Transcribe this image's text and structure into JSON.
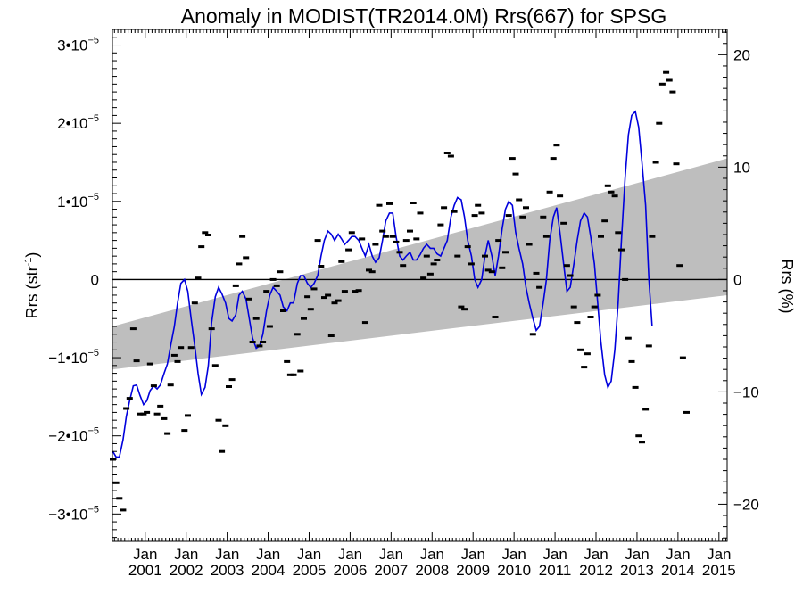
{
  "chart_data": {
    "type": "line",
    "title": "Anomaly in MODIST(TR2014.0M) Rrs(667) for SPSG",
    "ylabel_left": {
      "base": "Rrs (str",
      "sup": "-1",
      "end": ")"
    },
    "ylabel_right": "Rrs (%)",
    "x_range": [
      2000.2,
      2015.2
    ],
    "ylim_left": [
      -3.35e-05,
      3.2e-05
    ],
    "ylim_right": [
      -23.3,
      22.25
    ],
    "grid": false,
    "x_ticks": [
      {
        "x": 2001.0,
        "top": "Jan",
        "bottom": "2001"
      },
      {
        "x": 2002.0,
        "top": "Jan",
        "bottom": "2002"
      },
      {
        "x": 2003.0,
        "top": "Jan",
        "bottom": "2003"
      },
      {
        "x": 2004.0,
        "top": "Jan",
        "bottom": "2004"
      },
      {
        "x": 2005.0,
        "top": "Jan",
        "bottom": "2005"
      },
      {
        "x": 2006.0,
        "top": "Jan",
        "bottom": "2006"
      },
      {
        "x": 2007.0,
        "top": "Jan",
        "bottom": "2007"
      },
      {
        "x": 2008.0,
        "top": "Jan",
        "bottom": "2008"
      },
      {
        "x": 2009.0,
        "top": "Jan",
        "bottom": "2009"
      },
      {
        "x": 2010.0,
        "top": "Jan",
        "bottom": "2010"
      },
      {
        "x": 2011.0,
        "top": "Jan",
        "bottom": "2011"
      },
      {
        "x": 2012.0,
        "top": "Jan",
        "bottom": "2012"
      },
      {
        "x": 2013.0,
        "top": "Jan",
        "bottom": "2013"
      },
      {
        "x": 2014.0,
        "top": "Jan",
        "bottom": "2014"
      },
      {
        "x": 2015.0,
        "top": "Jan",
        "bottom": "2015"
      }
    ],
    "y_ticks_left": [
      {
        "v": 3e-05,
        "m": "3•10",
        "e": "−5"
      },
      {
        "v": 2e-05,
        "m": "2•10",
        "e": "−5"
      },
      {
        "v": 1e-05,
        "m": "1•10",
        "e": "−5"
      },
      {
        "v": 0,
        "m": "0",
        "e": ""
      },
      {
        "v": -1e-05,
        "m": "−1•10",
        "e": "−5"
      },
      {
        "v": -2e-05,
        "m": "−2•10",
        "e": "−5"
      },
      {
        "v": -3e-05,
        "m": "−3•10",
        "e": "−5"
      }
    ],
    "y_ticks_right": [
      {
        "v": 20,
        "label": "20"
      },
      {
        "v": 10,
        "label": "10"
      },
      {
        "v": 0,
        "label": "0"
      },
      {
        "v": -10,
        "label": "−10"
      },
      {
        "v": -20,
        "label": "−20"
      }
    ],
    "colors": {
      "smooth_line": "#0000dd",
      "trend_band": "#bebebe",
      "points": "#000000",
      "zero_line": "#000000"
    },
    "trend_band": {
      "x": [
        2000.2,
        2015.2
      ],
      "lower": [
        -1.15e-05,
        -2e-06
      ],
      "upper": [
        -6e-06,
        1.55e-05
      ]
    },
    "monthly_points": [
      [
        2000.21,
        -2.3e-05
      ],
      [
        2000.29,
        -2.6e-05
      ],
      [
        2000.37,
        -2.8e-05
      ],
      [
        2000.46,
        -2.95e-05
      ],
      [
        2000.54,
        -1.65e-05
      ],
      [
        2000.62,
        -1.52e-05
      ],
      [
        2000.71,
        -6.3e-06
      ],
      [
        2000.79,
        -1.04e-05
      ],
      [
        2000.87,
        -1.72e-05
      ],
      [
        2000.96,
        -1.72e-05
      ],
      [
        2001.04,
        -1.7e-05
      ],
      [
        2001.12,
        -1.08e-05
      ],
      [
        2001.21,
        -1.36e-05
      ],
      [
        2001.29,
        -1.72e-05
      ],
      [
        2001.37,
        -1.62e-05
      ],
      [
        2001.46,
        -1.78e-05
      ],
      [
        2001.54,
        -1.97e-05
      ],
      [
        2001.62,
        -1.35e-05
      ],
      [
        2001.71,
        -9.7e-06
      ],
      [
        2001.79,
        -1.05e-05
      ],
      [
        2001.87,
        -8.7e-06
      ],
      [
        2001.96,
        -1.93e-05
      ],
      [
        2002.04,
        -1.74e-05
      ],
      [
        2002.12,
        -8.7e-06
      ],
      [
        2002.21,
        -3e-06
      ],
      [
        2002.29,
        2e-07
      ],
      [
        2002.37,
        4.2e-06
      ],
      [
        2002.46,
        6e-06
      ],
      [
        2002.54,
        5.7e-06
      ],
      [
        2002.62,
        -6.3e-06
      ],
      [
        2002.71,
        -1.1e-05
      ],
      [
        2002.79,
        -1.8e-05
      ],
      [
        2002.87,
        -2.2e-05
      ],
      [
        2002.96,
        -1.87e-05
      ],
      [
        2003.04,
        -1.37e-05
      ],
      [
        2003.12,
        -1.28e-05
      ],
      [
        2003.21,
        -8e-07
      ],
      [
        2003.29,
        2e-06
      ],
      [
        2003.37,
        5.5e-06
      ],
      [
        2003.46,
        2.8e-06
      ],
      [
        2003.54,
        -2.5e-06
      ],
      [
        2003.62,
        -8e-06
      ],
      [
        2003.71,
        -5e-06
      ],
      [
        2003.79,
        -8.5e-06
      ],
      [
        2003.87,
        -8e-06
      ],
      [
        2003.96,
        -1.5e-06
      ],
      [
        2004.04,
        -6e-06
      ],
      [
        2004.12,
        0.0
      ],
      [
        2004.21,
        -8e-07
      ],
      [
        2004.29,
        1e-06
      ],
      [
        2004.37,
        -4e-06
      ],
      [
        2004.46,
        -1.05e-05
      ],
      [
        2004.54,
        -1.22e-05
      ],
      [
        2004.62,
        -1.22e-05
      ],
      [
        2004.71,
        -7e-06
      ],
      [
        2004.79,
        -1.17e-05
      ],
      [
        2004.87,
        -5e-06
      ],
      [
        2004.96,
        -2.2e-06
      ],
      [
        2005.04,
        -3.8e-06
      ],
      [
        2005.12,
        -1.2e-06
      ],
      [
        2005.21,
        5e-06
      ],
      [
        2005.29,
        1.7e-06
      ],
      [
        2005.37,
        -2.3e-06
      ],
      [
        2005.46,
        -2e-06
      ],
      [
        2005.54,
        -7.2e-06
      ],
      [
        2005.62,
        -3e-06
      ],
      [
        2005.71,
        -2.7e-06
      ],
      [
        2005.79,
        2.3e-06
      ],
      [
        2005.87,
        -1.5e-06
      ],
      [
        2005.96,
        3.8e-06
      ],
      [
        2006.04,
        6e-06
      ],
      [
        2006.12,
        -1.5e-06
      ],
      [
        2006.21,
        -1.4e-06
      ],
      [
        2006.29,
        5.2e-06
      ],
      [
        2006.37,
        -5.5e-06
      ],
      [
        2006.46,
        1.2e-06
      ],
      [
        2006.54,
        1e-06
      ],
      [
        2006.62,
        4.5e-06
      ],
      [
        2006.71,
        9.5e-06
      ],
      [
        2006.79,
        6.2e-06
      ],
      [
        2006.87,
        5.5e-06
      ],
      [
        2006.96,
        9.7e-06
      ],
      [
        2007.04,
        5.5e-06
      ],
      [
        2007.12,
        4.8e-06
      ],
      [
        2007.21,
        3.5e-06
      ],
      [
        2007.29,
        1.8e-06
      ],
      [
        2007.37,
        5e-06
      ],
      [
        2007.46,
        6.2e-06
      ],
      [
        2007.54,
        9.8e-06
      ],
      [
        2007.62,
        5.2e-06
      ],
      [
        2007.71,
        8.5e-06
      ],
      [
        2007.79,
        2e-07
      ],
      [
        2007.87,
        3e-06
      ],
      [
        2007.96,
        7e-07
      ],
      [
        2008.04,
        2e-06
      ],
      [
        2008.12,
        2.5e-06
      ],
      [
        2008.21,
        7e-06
      ],
      [
        2008.29,
        9.2e-06
      ],
      [
        2008.37,
        1.62e-05
      ],
      [
        2008.46,
        1.58e-05
      ],
      [
        2008.54,
        8.7e-06
      ],
      [
        2008.62,
        3e-06
      ],
      [
        2008.71,
        -3.5e-06
      ],
      [
        2008.79,
        -3.8e-06
      ],
      [
        2008.87,
        4.2e-06
      ],
      [
        2008.96,
        2e-06
      ],
      [
        2009.04,
        8.2e-06
      ],
      [
        2009.12,
        9.5e-06
      ],
      [
        2009.21,
        8.5e-06
      ],
      [
        2009.29,
        3e-06
      ],
      [
        2009.37,
        1.2e-06
      ],
      [
        2009.46,
        1e-06
      ],
      [
        2009.54,
        -4.8e-06
      ],
      [
        2009.62,
        5e-06
      ],
      [
        2009.71,
        1.5e-06
      ],
      [
        2009.79,
        3.5e-06
      ],
      [
        2009.87,
        8.2e-06
      ],
      [
        2009.96,
        1.55e-05
      ],
      [
        2010.04,
        1.35e-05
      ],
      [
        2010.12,
        1.02e-05
      ],
      [
        2010.21,
        8e-06
      ],
      [
        2010.29,
        9.2e-06
      ],
      [
        2010.37,
        4.5e-06
      ],
      [
        2010.46,
        -7e-06
      ],
      [
        2010.54,
        8e-07
      ],
      [
        2010.62,
        -1e-06
      ],
      [
        2010.71,
        8e-06
      ],
      [
        2010.79,
        5.5e-06
      ],
      [
        2010.87,
        1.12e-05
      ],
      [
        2010.96,
        1.55e-05
      ],
      [
        2011.04,
        1.72e-05
      ],
      [
        2011.12,
        1.07e-05
      ],
      [
        2011.21,
        7.2e-06
      ],
      [
        2011.29,
        1.8e-06
      ],
      [
        2011.37,
        5e-07
      ],
      [
        2011.46,
        -3.5e-06
      ],
      [
        2011.54,
        -5.5e-06
      ],
      [
        2011.62,
        -9e-06
      ],
      [
        2011.71,
        -1.12e-05
      ],
      [
        2011.79,
        -9.5e-06
      ],
      [
        2011.87,
        -4.8e-06
      ],
      [
        2011.96,
        -3.5e-06
      ],
      [
        2012.04,
        -2e-06
      ],
      [
        2012.12,
        5.5e-06
      ],
      [
        2012.21,
        7.5e-06
      ],
      [
        2012.29,
        1.2e-05
      ],
      [
        2012.37,
        1.12e-05
      ],
      [
        2012.46,
        1.07e-05
      ],
      [
        2012.54,
        6e-06
      ],
      [
        2012.62,
        3.8e-06
      ],
      [
        2012.71,
        0.0
      ],
      [
        2012.79,
        -7.5e-06
      ],
      [
        2012.87,
        -1.05e-05
      ],
      [
        2012.96,
        -1.38e-05
      ],
      [
        2013.04,
        -2e-05
      ],
      [
        2013.12,
        -2.08e-05
      ],
      [
        2013.21,
        -1.66e-05
      ],
      [
        2013.29,
        -8.5e-06
      ],
      [
        2013.37,
        5.5e-06
      ],
      [
        2013.46,
        1.5e-05
      ],
      [
        2013.54,
        2e-05
      ],
      [
        2013.62,
        2.5e-05
      ],
      [
        2013.71,
        2.65e-05
      ],
      [
        2013.79,
        2.55e-05
      ],
      [
        2013.87,
        2.4e-05
      ],
      [
        2013.96,
        1.48e-05
      ],
      [
        2014.04,
        1.8e-06
      ],
      [
        2014.12,
        -1e-05
      ],
      [
        2014.21,
        -1.7e-05
      ]
    ],
    "smooth_line": [
      [
        2000.21,
        -2.2e-05
      ],
      [
        2000.29,
        -2.27e-05
      ],
      [
        2000.37,
        -2.27e-05
      ],
      [
        2000.46,
        -2.05e-05
      ],
      [
        2000.54,
        -1.75e-05
      ],
      [
        2000.62,
        -1.55e-05
      ],
      [
        2000.71,
        -1.36e-05
      ],
      [
        2000.79,
        -1.35e-05
      ],
      [
        2000.87,
        -1.48e-05
      ],
      [
        2000.96,
        -1.6e-05
      ],
      [
        2001.04,
        -1.55e-05
      ],
      [
        2001.12,
        -1.42e-05
      ],
      [
        2001.21,
        -1.36e-05
      ],
      [
        2001.29,
        -1.4e-05
      ],
      [
        2001.37,
        -1.35e-05
      ],
      [
        2001.46,
        -1.2e-05
      ],
      [
        2001.54,
        -1.08e-05
      ],
      [
        2001.62,
        -8.5e-06
      ],
      [
        2001.71,
        -6e-06
      ],
      [
        2001.79,
        -3e-06
      ],
      [
        2001.87,
        -5e-07
      ],
      [
        2001.96,
        0.0
      ],
      [
        2002.04,
        -1.5e-06
      ],
      [
        2002.12,
        -5e-06
      ],
      [
        2002.21,
        -8.5e-06
      ],
      [
        2002.29,
        -1.2e-05
      ],
      [
        2002.37,
        -1.47e-05
      ],
      [
        2002.46,
        -1.38e-05
      ],
      [
        2002.54,
        -1.1e-05
      ],
      [
        2002.62,
        -5.5e-06
      ],
      [
        2002.71,
        -2.2e-06
      ],
      [
        2002.79,
        -1e-06
      ],
      [
        2002.87,
        -1.8e-06
      ],
      [
        2002.96,
        -3e-06
      ],
      [
        2003.04,
        -5e-06
      ],
      [
        2003.12,
        -5.3e-06
      ],
      [
        2003.21,
        -4.5e-06
      ],
      [
        2003.29,
        -2e-06
      ],
      [
        2003.37,
        -1.5e-06
      ],
      [
        2003.46,
        -2.5e-06
      ],
      [
        2003.54,
        -5e-06
      ],
      [
        2003.62,
        -7.5e-06
      ],
      [
        2003.71,
        -8.8e-06
      ],
      [
        2003.79,
        -8.5e-06
      ],
      [
        2003.87,
        -7e-06
      ],
      [
        2003.96,
        -4e-06
      ],
      [
        2004.04,
        -2e-06
      ],
      [
        2004.12,
        -1e-06
      ],
      [
        2004.21,
        -1.5e-06
      ],
      [
        2004.29,
        -2e-06
      ],
      [
        2004.37,
        -3.5e-06
      ],
      [
        2004.46,
        -4e-06
      ],
      [
        2004.54,
        -3e-06
      ],
      [
        2004.62,
        -3e-06
      ],
      [
        2004.71,
        -5e-07
      ],
      [
        2004.79,
        5e-07
      ],
      [
        2004.87,
        5e-07
      ],
      [
        2004.96,
        -5e-07
      ],
      [
        2005.04,
        -1e-06
      ],
      [
        2005.12,
        -5e-07
      ],
      [
        2005.21,
        5e-07
      ],
      [
        2005.29,
        3e-06
      ],
      [
        2005.37,
        5e-06
      ],
      [
        2005.46,
        6.2e-06
      ],
      [
        2005.54,
        5.8e-06
      ],
      [
        2005.62,
        5e-06
      ],
      [
        2005.71,
        5.8e-06
      ],
      [
        2005.79,
        5.2e-06
      ],
      [
        2005.87,
        4.5e-06
      ],
      [
        2005.96,
        5e-06
      ],
      [
        2006.04,
        5.5e-06
      ],
      [
        2006.12,
        5.5e-06
      ],
      [
        2006.21,
        5e-06
      ],
      [
        2006.29,
        4e-06
      ],
      [
        2006.37,
        3e-06
      ],
      [
        2006.46,
        4.5e-06
      ],
      [
        2006.54,
        3e-06
      ],
      [
        2006.62,
        2.2e-06
      ],
      [
        2006.71,
        2.8e-06
      ],
      [
        2006.79,
        5e-06
      ],
      [
        2006.87,
        7.5e-06
      ],
      [
        2006.96,
        8.5e-06
      ],
      [
        2007.04,
        8.5e-06
      ],
      [
        2007.12,
        5.5e-06
      ],
      [
        2007.21,
        3e-06
      ],
      [
        2007.29,
        2.5e-06
      ],
      [
        2007.37,
        3e-06
      ],
      [
        2007.46,
        3.5e-06
      ],
      [
        2007.54,
        2.5e-06
      ],
      [
        2007.62,
        2.5e-06
      ],
      [
        2007.71,
        3.2e-06
      ],
      [
        2007.79,
        4e-06
      ],
      [
        2007.87,
        4.5e-06
      ],
      [
        2007.96,
        4e-06
      ],
      [
        2008.04,
        4e-06
      ],
      [
        2008.12,
        3.3e-06
      ],
      [
        2008.21,
        3e-06
      ],
      [
        2008.29,
        4e-06
      ],
      [
        2008.37,
        5e-06
      ],
      [
        2008.46,
        8e-06
      ],
      [
        2008.54,
        9.5e-06
      ],
      [
        2008.62,
        1.05e-05
      ],
      [
        2008.71,
        1.02e-05
      ],
      [
        2008.79,
        8e-06
      ],
      [
        2008.87,
        5e-06
      ],
      [
        2008.96,
        3e-06
      ],
      [
        2009.04,
        0.0
      ],
      [
        2009.12,
        -1e-06
      ],
      [
        2009.21,
        0.0
      ],
      [
        2009.29,
        3e-06
      ],
      [
        2009.37,
        5e-06
      ],
      [
        2009.46,
        3e-06
      ],
      [
        2009.54,
        5e-07
      ],
      [
        2009.62,
        3e-06
      ],
      [
        2009.71,
        6.5e-06
      ],
      [
        2009.79,
        9e-06
      ],
      [
        2009.87,
        1e-05
      ],
      [
        2009.96,
        9.5e-06
      ],
      [
        2010.04,
        6e-06
      ],
      [
        2010.12,
        4e-06
      ],
      [
        2010.21,
        2e-06
      ],
      [
        2010.29,
        -1e-06
      ],
      [
        2010.37,
        -3e-06
      ],
      [
        2010.46,
        -5e-06
      ],
      [
        2010.54,
        -6.5e-06
      ],
      [
        2010.62,
        -6e-06
      ],
      [
        2010.71,
        -3e-06
      ],
      [
        2010.79,
        0.0
      ],
      [
        2010.87,
        5e-06
      ],
      [
        2010.96,
        8e-06
      ],
      [
        2011.04,
        9.2e-06
      ],
      [
        2011.12,
        6e-06
      ],
      [
        2011.21,
        2e-06
      ],
      [
        2011.29,
        -1.5e-06
      ],
      [
        2011.37,
        -1e-06
      ],
      [
        2011.46,
        2e-06
      ],
      [
        2011.54,
        5e-06
      ],
      [
        2011.62,
        7.5e-06
      ],
      [
        2011.71,
        8.5e-06
      ],
      [
        2011.79,
        8e-06
      ],
      [
        2011.87,
        5.5e-06
      ],
      [
        2011.96,
        2e-06
      ],
      [
        2012.04,
        -3e-06
      ],
      [
        2012.12,
        -8e-06
      ],
      [
        2012.21,
        -1.22e-05
      ],
      [
        2012.29,
        -1.38e-05
      ],
      [
        2012.37,
        -1.3e-05
      ],
      [
        2012.46,
        -9e-06
      ],
      [
        2012.54,
        -3e-06
      ],
      [
        2012.62,
        5e-06
      ],
      [
        2012.71,
        1.3e-05
      ],
      [
        2012.79,
        1.85e-05
      ],
      [
        2012.87,
        2.1e-05
      ],
      [
        2012.96,
        2.15e-05
      ],
      [
        2013.04,
        1.95e-05
      ],
      [
        2013.12,
        1.5e-05
      ],
      [
        2013.21,
        9.5e-06
      ],
      [
        2013.29,
        0.0
      ],
      [
        2013.37,
        -6e-06
      ]
    ]
  }
}
